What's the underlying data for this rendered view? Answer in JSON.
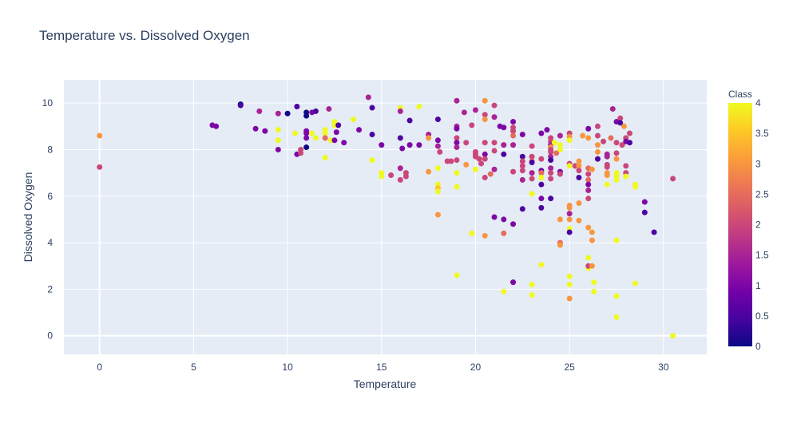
{
  "chart_data": {
    "type": "scatter",
    "title": "Temperature vs. Dissolved Oxygen",
    "xlabel": "Temperature",
    "ylabel": "Dissolved Oxygen",
    "xlim": [
      -1.9,
      32.3
    ],
    "ylim": [
      -0.8,
      11.0
    ],
    "xticks": [
      0,
      5,
      10,
      15,
      20,
      25,
      30
    ],
    "yticks": [
      0,
      2,
      4,
      6,
      8,
      10
    ],
    "grid": true,
    "plot_background": "#e5ecf6",
    "grid_color": "#ffffff",
    "colorbar": {
      "title": "Class",
      "min": 0,
      "max": 4,
      "ticks": [
        "0",
        "0.5",
        "1",
        "1.5",
        "2",
        "2.5",
        "3",
        "3.5",
        "4"
      ],
      "colorscale": [
        "#0d0887",
        "#46039f",
        "#7201a8",
        "#9c179e",
        "#bd3786",
        "#d8576b",
        "#ed7953",
        "#fb9f3a",
        "#fdca26",
        "#f0f921"
      ]
    },
    "points": [
      {
        "x": 0,
        "y": 8.6,
        "c": 3
      },
      {
        "x": 0,
        "y": 7.25,
        "c": 2
      },
      {
        "x": 6,
        "y": 9.05,
        "c": 1
      },
      {
        "x": 6.2,
        "y": 9.0,
        "c": 1
      },
      {
        "x": 7.5,
        "y": 9.95,
        "c": 0
      },
      {
        "x": 7.5,
        "y": 9.9,
        "c": 0.5
      },
      {
        "x": 8.5,
        "y": 9.65,
        "c": 1.5
      },
      {
        "x": 8.3,
        "y": 8.9,
        "c": 1
      },
      {
        "x": 8.8,
        "y": 8.8,
        "c": 1
      },
      {
        "x": 9.5,
        "y": 9.55,
        "c": 1.5
      },
      {
        "x": 9.5,
        "y": 8.85,
        "c": 4
      },
      {
        "x": 9.5,
        "y": 8.4,
        "c": 4
      },
      {
        "x": 9.5,
        "y": 8.0,
        "c": 1
      },
      {
        "x": 10,
        "y": 9.55,
        "c": 0
      },
      {
        "x": 10.5,
        "y": 9.85,
        "c": 0.5
      },
      {
        "x": 10.4,
        "y": 8.7,
        "c": 4
      },
      {
        "x": 10.5,
        "y": 7.8,
        "c": 1
      },
      {
        "x": 10.7,
        "y": 8.0,
        "c": 2
      },
      {
        "x": 10.7,
        "y": 7.85,
        "c": 2
      },
      {
        "x": 11,
        "y": 9.6,
        "c": 0
      },
      {
        "x": 11,
        "y": 9.45,
        "c": 0
      },
      {
        "x": 11,
        "y": 8.8,
        "c": 1
      },
      {
        "x": 11,
        "y": 8.7,
        "c": 1
      },
      {
        "x": 11,
        "y": 8.5,
        "c": 1
      },
      {
        "x": 11,
        "y": 8.1,
        "c": 0
      },
      {
        "x": 11.3,
        "y": 9.6,
        "c": 1
      },
      {
        "x": 11.5,
        "y": 9.65,
        "c": 0.5
      },
      {
        "x": 11.3,
        "y": 8.7,
        "c": 4
      },
      {
        "x": 11.5,
        "y": 8.5,
        "c": 4
      },
      {
        "x": 12,
        "y": 8.85,
        "c": 4
      },
      {
        "x": 12,
        "y": 8.7,
        "c": 4
      },
      {
        "x": 12,
        "y": 8.5,
        "c": 2.5
      },
      {
        "x": 12,
        "y": 7.65,
        "c": 4
      },
      {
        "x": 12.2,
        "y": 9.75,
        "c": 1.5
      },
      {
        "x": 12.3,
        "y": 8.4,
        "c": 4
      },
      {
        "x": 12.5,
        "y": 9.2,
        "c": 4
      },
      {
        "x": 12.5,
        "y": 9.05,
        "c": 4
      },
      {
        "x": 12.6,
        "y": 8.75,
        "c": 1
      },
      {
        "x": 12.7,
        "y": 9.05,
        "c": 0.5
      },
      {
        "x": 12.5,
        "y": 8.4,
        "c": 1
      },
      {
        "x": 13,
        "y": 8.3,
        "c": 1
      },
      {
        "x": 13.5,
        "y": 9.3,
        "c": 4
      },
      {
        "x": 13.8,
        "y": 8.85,
        "c": 1
      },
      {
        "x": 14.3,
        "y": 10.25,
        "c": 1.5
      },
      {
        "x": 14.5,
        "y": 9.8,
        "c": 0.5
      },
      {
        "x": 14.5,
        "y": 8.65,
        "c": 0.5
      },
      {
        "x": 14.5,
        "y": 7.55,
        "c": 4
      },
      {
        "x": 15,
        "y": 8.2,
        "c": 1
      },
      {
        "x": 15,
        "y": 7.0,
        "c": 4
      },
      {
        "x": 15,
        "y": 6.85,
        "c": 4
      },
      {
        "x": 15.5,
        "y": 6.9,
        "c": 2
      },
      {
        "x": 16,
        "y": 9.8,
        "c": 4
      },
      {
        "x": 16,
        "y": 9.65,
        "c": 1.5
      },
      {
        "x": 16,
        "y": 8.5,
        "c": 0.5
      },
      {
        "x": 16.1,
        "y": 8.05,
        "c": 1
      },
      {
        "x": 16,
        "y": 7.2,
        "c": 1.5
      },
      {
        "x": 16,
        "y": 6.7,
        "c": 2
      },
      {
        "x": 16.3,
        "y": 7.0,
        "c": 2
      },
      {
        "x": 16.3,
        "y": 6.85,
        "c": 2
      },
      {
        "x": 16.5,
        "y": 9.25,
        "c": 0.5
      },
      {
        "x": 16.5,
        "y": 8.2,
        "c": 1
      },
      {
        "x": 17,
        "y": 9.85,
        "c": 4
      },
      {
        "x": 17,
        "y": 8.2,
        "c": 1
      },
      {
        "x": 17.5,
        "y": 8.65,
        "c": 1.5
      },
      {
        "x": 17.5,
        "y": 8.5,
        "c": 3
      },
      {
        "x": 17.5,
        "y": 7.05,
        "c": 3
      },
      {
        "x": 18,
        "y": 9.3,
        "c": 0.5
      },
      {
        "x": 18,
        "y": 8.4,
        "c": 1
      },
      {
        "x": 18,
        "y": 8.15,
        "c": 1.5
      },
      {
        "x": 18.1,
        "y": 7.9,
        "c": 2
      },
      {
        "x": 18,
        "y": 7.2,
        "c": 4
      },
      {
        "x": 18,
        "y": 6.5,
        "c": 4
      },
      {
        "x": 18,
        "y": 6.35,
        "c": 3.5
      },
      {
        "x": 18,
        "y": 6.2,
        "c": 4
      },
      {
        "x": 18,
        "y": 5.2,
        "c": 3
      },
      {
        "x": 18.5,
        "y": 7.5,
        "c": 2
      },
      {
        "x": 18.7,
        "y": 7.5,
        "c": 2
      },
      {
        "x": 19,
        "y": 10.1,
        "c": 1.5
      },
      {
        "x": 19,
        "y": 9.0,
        "c": 1.5
      },
      {
        "x": 19,
        "y": 8.9,
        "c": 1
      },
      {
        "x": 19,
        "y": 8.5,
        "c": 2
      },
      {
        "x": 19,
        "y": 8.3,
        "c": 1
      },
      {
        "x": 19,
        "y": 8.1,
        "c": 1.5
      },
      {
        "x": 19,
        "y": 7.55,
        "c": 2
      },
      {
        "x": 19,
        "y": 7.0,
        "c": 4
      },
      {
        "x": 19,
        "y": 6.4,
        "c": 4
      },
      {
        "x": 19,
        "y": 2.6,
        "c": 4
      },
      {
        "x": 19.4,
        "y": 9.6,
        "c": 1.5
      },
      {
        "x": 19.5,
        "y": 8.3,
        "c": 2
      },
      {
        "x": 19.5,
        "y": 7.35,
        "c": 3
      },
      {
        "x": 19.8,
        "y": 9.05,
        "c": 2
      },
      {
        "x": 19.8,
        "y": 4.4,
        "c": 4
      },
      {
        "x": 20,
        "y": 9.7,
        "c": 1.5
      },
      {
        "x": 20,
        "y": 7.9,
        "c": 2
      },
      {
        "x": 20,
        "y": 7.8,
        "c": 2
      },
      {
        "x": 20,
        "y": 7.7,
        "c": 2
      },
      {
        "x": 20,
        "y": 7.15,
        "c": 4
      },
      {
        "x": 20.2,
        "y": 7.6,
        "c": 2
      },
      {
        "x": 20.3,
        "y": 7.4,
        "c": 2
      },
      {
        "x": 20.5,
        "y": 10.1,
        "c": 3
      },
      {
        "x": 20.5,
        "y": 9.5,
        "c": 2
      },
      {
        "x": 20.5,
        "y": 9.3,
        "c": 3
      },
      {
        "x": 20.5,
        "y": 8.3,
        "c": 2
      },
      {
        "x": 20.5,
        "y": 7.8,
        "c": 1
      },
      {
        "x": 20.5,
        "y": 7.6,
        "c": 2
      },
      {
        "x": 20.5,
        "y": 6.8,
        "c": 2
      },
      {
        "x": 20.5,
        "y": 4.3,
        "c": 3
      },
      {
        "x": 20.8,
        "y": 6.95,
        "c": 2.5
      },
      {
        "x": 21,
        "y": 9.9,
        "c": 2
      },
      {
        "x": 21,
        "y": 9.4,
        "c": 1.5
      },
      {
        "x": 21,
        "y": 8.3,
        "c": 2
      },
      {
        "x": 21,
        "y": 7.95,
        "c": 2
      },
      {
        "x": 21,
        "y": 7.15,
        "c": 1.5
      },
      {
        "x": 21,
        "y": 5.1,
        "c": 1
      },
      {
        "x": 21.3,
        "y": 9.0,
        "c": 1
      },
      {
        "x": 21.5,
        "y": 8.95,
        "c": 1
      },
      {
        "x": 21.5,
        "y": 8.2,
        "c": 1.5
      },
      {
        "x": 21.5,
        "y": 7.8,
        "c": 0.5
      },
      {
        "x": 21.5,
        "y": 5.0,
        "c": 1
      },
      {
        "x": 21.5,
        "y": 4.4,
        "c": 2.5
      },
      {
        "x": 21.5,
        "y": 1.9,
        "c": 4
      },
      {
        "x": 22,
        "y": 9.2,
        "c": 1
      },
      {
        "x": 22,
        "y": 8.95,
        "c": 2
      },
      {
        "x": 22,
        "y": 8.8,
        "c": 2
      },
      {
        "x": 22,
        "y": 8.6,
        "c": 2.5
      },
      {
        "x": 22,
        "y": 8.2,
        "c": 1.5
      },
      {
        "x": 22,
        "y": 7.05,
        "c": 2
      },
      {
        "x": 22,
        "y": 4.8,
        "c": 1
      },
      {
        "x": 22,
        "y": 2.3,
        "c": 1
      },
      {
        "x": 22.5,
        "y": 8.65,
        "c": 1
      },
      {
        "x": 22.5,
        "y": 7.7,
        "c": 0.5
      },
      {
        "x": 22.5,
        "y": 7.5,
        "c": 2
      },
      {
        "x": 22.5,
        "y": 7.3,
        "c": 2
      },
      {
        "x": 22.5,
        "y": 7.1,
        "c": 2
      },
      {
        "x": 22.5,
        "y": 6.7,
        "c": 1.5
      },
      {
        "x": 22.5,
        "y": 5.45,
        "c": 0.5
      },
      {
        "x": 23,
        "y": 8.15,
        "c": 2
      },
      {
        "x": 23,
        "y": 7.7,
        "c": 2
      },
      {
        "x": 23,
        "y": 7.5,
        "c": 2.5
      },
      {
        "x": 23,
        "y": 7.45,
        "c": 0.5
      },
      {
        "x": 23,
        "y": 7.0,
        "c": 1.5
      },
      {
        "x": 23,
        "y": 6.75,
        "c": 2
      },
      {
        "x": 23,
        "y": 6.1,
        "c": 4
      },
      {
        "x": 23,
        "y": 2.2,
        "c": 4
      },
      {
        "x": 23,
        "y": 1.75,
        "c": 4
      },
      {
        "x": 23.5,
        "y": 8.7,
        "c": 1
      },
      {
        "x": 23.5,
        "y": 7.6,
        "c": 2
      },
      {
        "x": 23.5,
        "y": 7.1,
        "c": 1
      },
      {
        "x": 23.5,
        "y": 7.0,
        "c": 2.5
      },
      {
        "x": 23.5,
        "y": 6.8,
        "c": 4
      },
      {
        "x": 23.5,
        "y": 6.5,
        "c": 0.5
      },
      {
        "x": 23.5,
        "y": 5.9,
        "c": 1
      },
      {
        "x": 23.5,
        "y": 5.5,
        "c": 0.5
      },
      {
        "x": 23.5,
        "y": 3.05,
        "c": 4
      },
      {
        "x": 23.8,
        "y": 8.85,
        "c": 1
      },
      {
        "x": 24,
        "y": 8.5,
        "c": 2
      },
      {
        "x": 24,
        "y": 8.35,
        "c": 2
      },
      {
        "x": 24,
        "y": 8.2,
        "c": 1.5
      },
      {
        "x": 24,
        "y": 8.1,
        "c": 3
      },
      {
        "x": 24,
        "y": 8.0,
        "c": 2
      },
      {
        "x": 24,
        "y": 7.9,
        "c": 2
      },
      {
        "x": 24,
        "y": 7.7,
        "c": 1.5
      },
      {
        "x": 24,
        "y": 7.55,
        "c": 0.5
      },
      {
        "x": 24,
        "y": 7.2,
        "c": 1.5
      },
      {
        "x": 24,
        "y": 7.0,
        "c": 2
      },
      {
        "x": 24,
        "y": 6.75,
        "c": 2
      },
      {
        "x": 24,
        "y": 5.9,
        "c": 0.5
      },
      {
        "x": 24.2,
        "y": 8.3,
        "c": 4
      },
      {
        "x": 24.3,
        "y": 7.85,
        "c": 2.5
      },
      {
        "x": 24.5,
        "y": 8.6,
        "c": 1.5
      },
      {
        "x": 24.5,
        "y": 8.2,
        "c": 4
      },
      {
        "x": 24.5,
        "y": 8.0,
        "c": 4
      },
      {
        "x": 24.5,
        "y": 7.05,
        "c": 1
      },
      {
        "x": 24.5,
        "y": 6.95,
        "c": 2
      },
      {
        "x": 24.5,
        "y": 5.0,
        "c": 3
      },
      {
        "x": 24.5,
        "y": 4.0,
        "c": 2.5
      },
      {
        "x": 24.5,
        "y": 3.9,
        "c": 3
      },
      {
        "x": 25,
        "y": 8.7,
        "c": 2
      },
      {
        "x": 25,
        "y": 8.55,
        "c": 3
      },
      {
        "x": 25,
        "y": 8.4,
        "c": 4
      },
      {
        "x": 25,
        "y": 7.4,
        "c": 2
      },
      {
        "x": 25,
        "y": 7.3,
        "c": 4
      },
      {
        "x": 25,
        "y": 5.6,
        "c": 3
      },
      {
        "x": 25,
        "y": 5.5,
        "c": 3
      },
      {
        "x": 25,
        "y": 5.25,
        "c": 1.5
      },
      {
        "x": 25,
        "y": 5.0,
        "c": 3
      },
      {
        "x": 25,
        "y": 4.6,
        "c": 4
      },
      {
        "x": 25,
        "y": 4.45,
        "c": 0.5
      },
      {
        "x": 25,
        "y": 2.55,
        "c": 4
      },
      {
        "x": 25,
        "y": 2.2,
        "c": 4
      },
      {
        "x": 25,
        "y": 1.6,
        "c": 3
      },
      {
        "x": 25.3,
        "y": 7.3,
        "c": 2
      },
      {
        "x": 25.5,
        "y": 7.5,
        "c": 3
      },
      {
        "x": 25.5,
        "y": 7.3,
        "c": 3
      },
      {
        "x": 25.5,
        "y": 7.1,
        "c": 2
      },
      {
        "x": 25.5,
        "y": 6.8,
        "c": 0.5
      },
      {
        "x": 25.5,
        "y": 5.7,
        "c": 3
      },
      {
        "x": 25.5,
        "y": 4.95,
        "c": 3
      },
      {
        "x": 25.7,
        "y": 8.6,
        "c": 3
      },
      {
        "x": 26,
        "y": 8.9,
        "c": 1
      },
      {
        "x": 26,
        "y": 8.5,
        "c": 3
      },
      {
        "x": 26,
        "y": 7.2,
        "c": 2.5
      },
      {
        "x": 26,
        "y": 6.95,
        "c": 2
      },
      {
        "x": 26,
        "y": 6.7,
        "c": 2.5
      },
      {
        "x": 26,
        "y": 6.5,
        "c": 1
      },
      {
        "x": 26,
        "y": 6.25,
        "c": 1.5
      },
      {
        "x": 26,
        "y": 5.9,
        "c": 2
      },
      {
        "x": 26,
        "y": 4.65,
        "c": 3
      },
      {
        "x": 26,
        "y": 3.35,
        "c": 4
      },
      {
        "x": 26,
        "y": 2.9,
        "c": 4
      },
      {
        "x": 26,
        "y": 3.0,
        "c": 2
      },
      {
        "x": 26.2,
        "y": 4.45,
        "c": 3
      },
      {
        "x": 26.2,
        "y": 4.1,
        "c": 3
      },
      {
        "x": 26.2,
        "y": 3.0,
        "c": 3
      },
      {
        "x": 26.3,
        "y": 2.3,
        "c": 4
      },
      {
        "x": 26.3,
        "y": 1.9,
        "c": 4
      },
      {
        "x": 26.2,
        "y": 7.15,
        "c": 3
      },
      {
        "x": 26.5,
        "y": 9.0,
        "c": 2
      },
      {
        "x": 26.5,
        "y": 8.6,
        "c": 2
      },
      {
        "x": 26.5,
        "y": 8.2,
        "c": 3
      },
      {
        "x": 26.5,
        "y": 7.9,
        "c": 3
      },
      {
        "x": 26.5,
        "y": 7.6,
        "c": 0.5
      },
      {
        "x": 26.8,
        "y": 8.35,
        "c": 2
      },
      {
        "x": 27,
        "y": 7.8,
        "c": 1.5
      },
      {
        "x": 27,
        "y": 7.7,
        "c": 1.5
      },
      {
        "x": 27,
        "y": 7.35,
        "c": 2
      },
      {
        "x": 27,
        "y": 7.25,
        "c": 2
      },
      {
        "x": 27,
        "y": 7.0,
        "c": 3
      },
      {
        "x": 27,
        "y": 6.9,
        "c": 3
      },
      {
        "x": 27,
        "y": 6.5,
        "c": 4
      },
      {
        "x": 27.2,
        "y": 8.5,
        "c": 2.5
      },
      {
        "x": 27.3,
        "y": 9.75,
        "c": 1.5
      },
      {
        "x": 27.5,
        "y": 9.2,
        "c": 1
      },
      {
        "x": 27.5,
        "y": 8.3,
        "c": 2
      },
      {
        "x": 27.5,
        "y": 7.85,
        "c": 2
      },
      {
        "x": 27.5,
        "y": 7.6,
        "c": 3
      },
      {
        "x": 27.5,
        "y": 7.0,
        "c": 4
      },
      {
        "x": 27.5,
        "y": 6.85,
        "c": 4
      },
      {
        "x": 27.5,
        "y": 6.7,
        "c": 4
      },
      {
        "x": 27.5,
        "y": 4.1,
        "c": 4
      },
      {
        "x": 27.5,
        "y": 1.7,
        "c": 4
      },
      {
        "x": 27.5,
        "y": 0.8,
        "c": 4
      },
      {
        "x": 27.7,
        "y": 9.35,
        "c": 2
      },
      {
        "x": 27.7,
        "y": 9.15,
        "c": 0.5
      },
      {
        "x": 27.8,
        "y": 8.2,
        "c": 2
      },
      {
        "x": 27.9,
        "y": 9.0,
        "c": 3
      },
      {
        "x": 28,
        "y": 8.5,
        "c": 2
      },
      {
        "x": 28,
        "y": 8.35,
        "c": 1
      },
      {
        "x": 28,
        "y": 7.3,
        "c": 2
      },
      {
        "x": 28,
        "y": 7.0,
        "c": 2
      },
      {
        "x": 28,
        "y": 6.85,
        "c": 4
      },
      {
        "x": 28.2,
        "y": 8.7,
        "c": 2
      },
      {
        "x": 28.2,
        "y": 8.3,
        "c": 0.5
      },
      {
        "x": 28.5,
        "y": 6.5,
        "c": 4
      },
      {
        "x": 28.5,
        "y": 6.4,
        "c": 4
      },
      {
        "x": 28.5,
        "y": 2.25,
        "c": 4
      },
      {
        "x": 29,
        "y": 5.75,
        "c": 1
      },
      {
        "x": 29,
        "y": 5.3,
        "c": 0.5
      },
      {
        "x": 29.5,
        "y": 4.45,
        "c": 0.5
      },
      {
        "x": 30.5,
        "y": 6.75,
        "c": 2
      },
      {
        "x": 30.5,
        "y": 0,
        "c": 4
      }
    ]
  }
}
